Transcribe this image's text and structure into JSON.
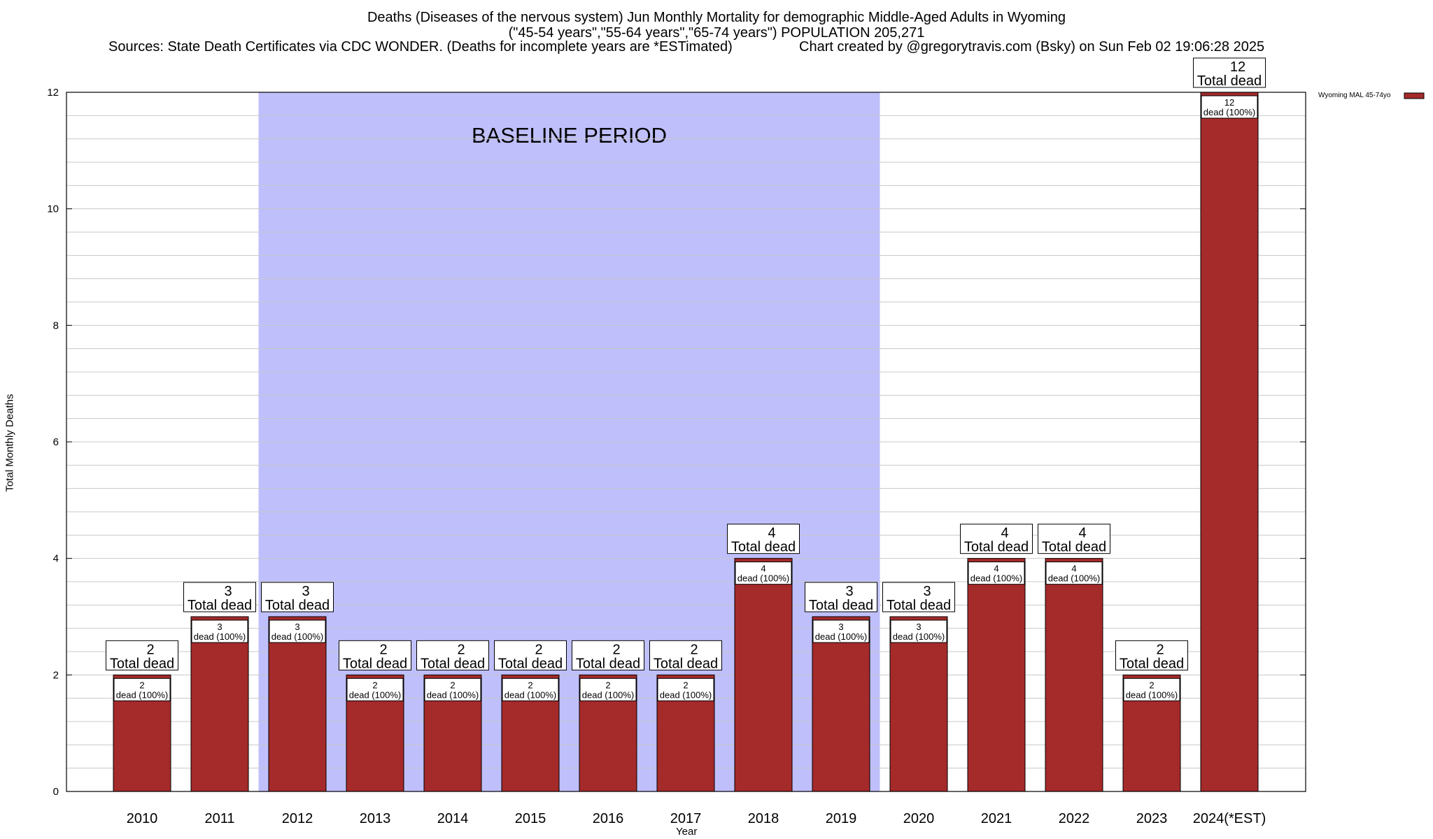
{
  "header": {
    "title_line1": "Deaths (Diseases of the nervous system) Jun Monthly Mortality for demographic Middle-Aged Adults in Wyoming",
    "title_line2": "(\"45-54 years\",\"55-64 years\",\"65-74 years\") POPULATION 205,271",
    "sources": "Sources: State Death Certificates via CDC WONDER. (Deaths for incomplete years are *ESTimated)",
    "credit": "Chart created by @gregorytravis.com (Bsky) on Sun Feb 02 19:06:28 2025"
  },
  "chart_data": {
    "type": "bar",
    "categories": [
      "2010",
      "2011",
      "2012",
      "2013",
      "2014",
      "2015",
      "2016",
      "2017",
      "2018",
      "2019",
      "2020",
      "2021",
      "2022",
      "2023",
      "2024(*EST)"
    ],
    "series": [
      {
        "name": "Wyoming MAL 45-74yo",
        "values": [
          2,
          3,
          3,
          2,
          2,
          2,
          2,
          2,
          4,
          3,
          3,
          4,
          4,
          2,
          12
        ],
        "color": "#a52a2a"
      }
    ],
    "total_label": "Total dead",
    "inner_label": "dead (100%)",
    "xlabel": "Year",
    "ylabel": "Total Monthly Deaths",
    "ylim": [
      0,
      12
    ],
    "yticks": [
      0,
      2,
      4,
      6,
      8,
      10,
      12
    ],
    "grid": true,
    "legend_position": "top-right",
    "baseline": {
      "label": "BASELINE PERIOD",
      "start_category": "2012",
      "end_category": "2019",
      "color": "#bfbffc"
    }
  }
}
